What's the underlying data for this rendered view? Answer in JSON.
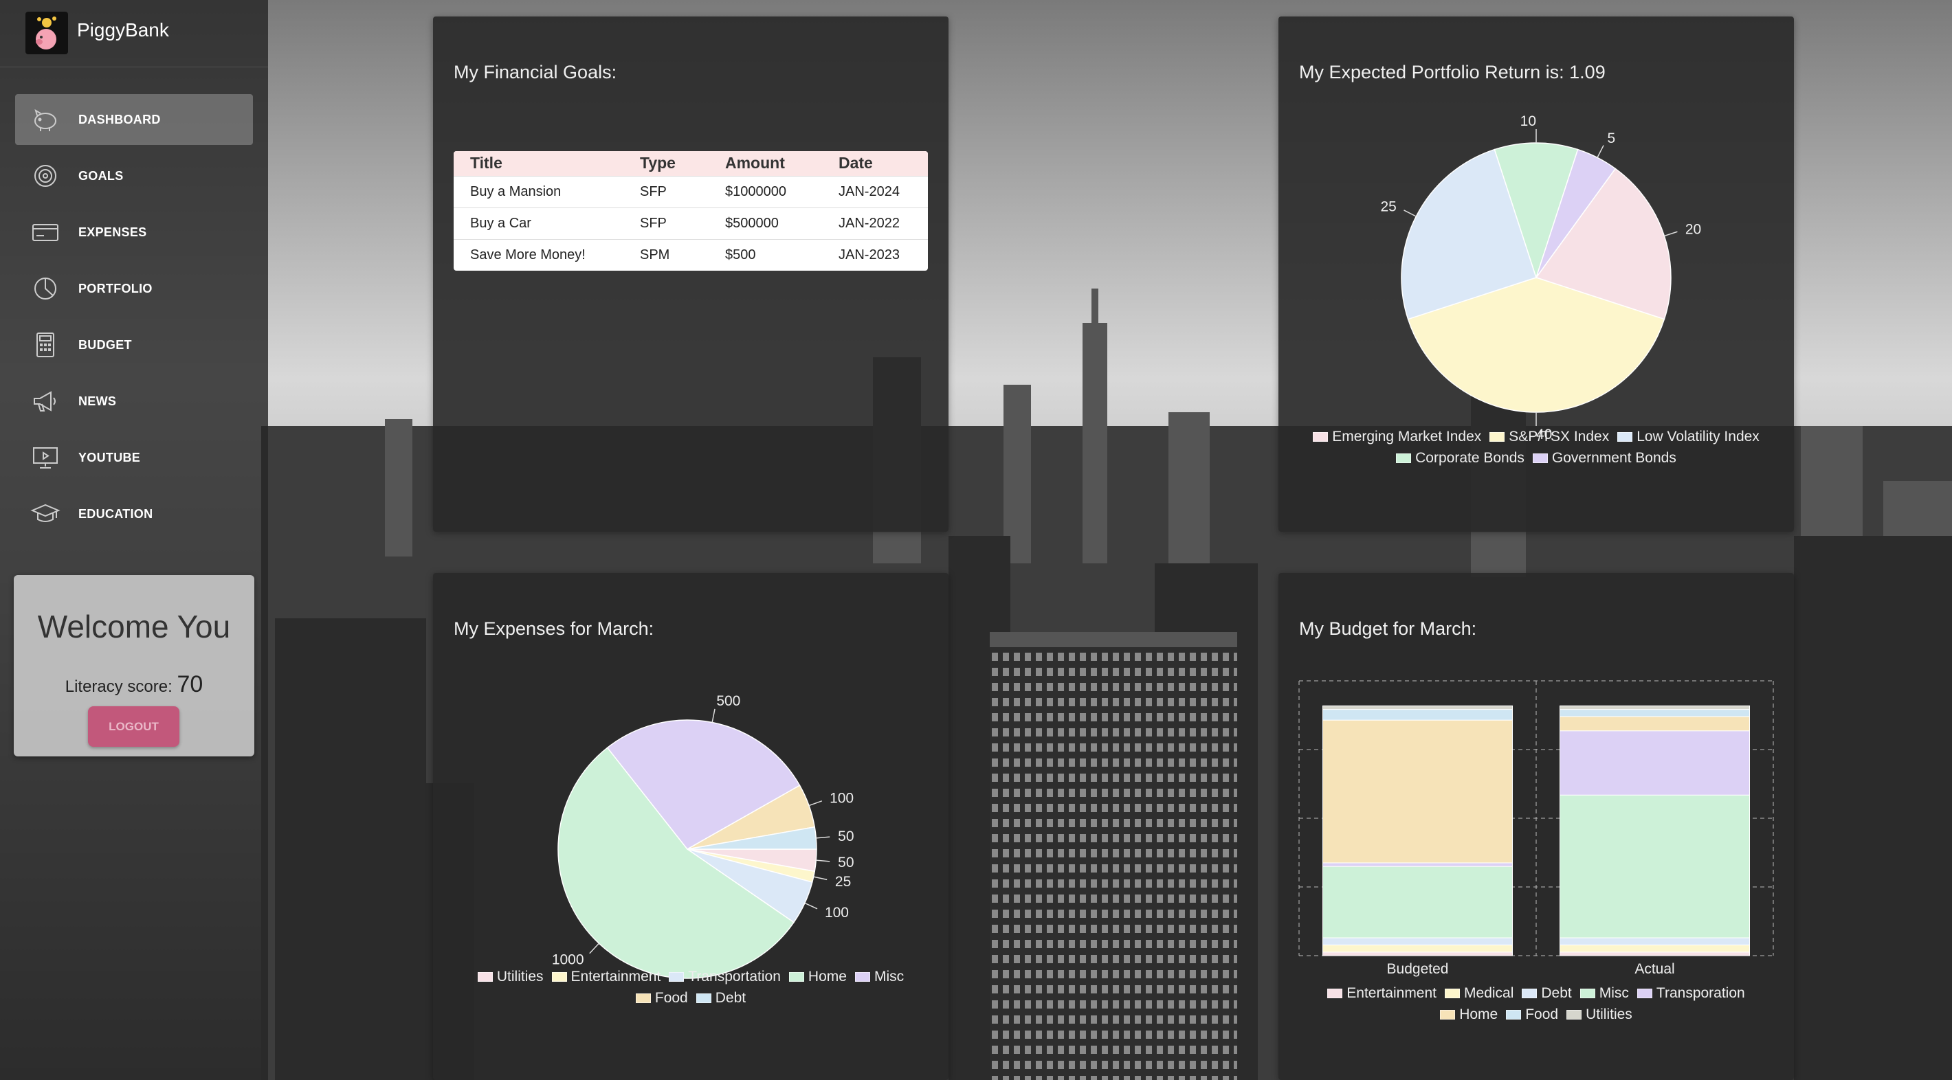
{
  "app": {
    "name": "PiggyBank"
  },
  "sidebar": {
    "items": [
      {
        "label": "DASHBOARD",
        "icon": "piggy-bank-icon",
        "active": true
      },
      {
        "label": "GOALS",
        "icon": "target-icon",
        "active": false
      },
      {
        "label": "EXPENSES",
        "icon": "credit-card-icon",
        "active": false
      },
      {
        "label": "PORTFOLIO",
        "icon": "pie-chart-icon",
        "active": false
      },
      {
        "label": "BUDGET",
        "icon": "calculator-icon",
        "active": false
      },
      {
        "label": "NEWS",
        "icon": "megaphone-icon",
        "active": false
      },
      {
        "label": "YOUTUBE",
        "icon": "monitor-icon",
        "active": false
      },
      {
        "label": "EDUCATION",
        "icon": "graduation-cap-icon",
        "active": false
      }
    ],
    "welcome": {
      "heading": "Welcome You",
      "literacy_label": "Literacy score:",
      "literacy_score": "70",
      "logout_label": "LOGOUT"
    }
  },
  "goals_card": {
    "title": "My Financial Goals:",
    "columns": [
      "Title",
      "Type",
      "Amount",
      "Date"
    ],
    "rows": [
      [
        "Buy a Mansion",
        "SFP",
        "$1000000",
        "JAN-2024"
      ],
      [
        "Buy a Car",
        "SFP",
        "$500000",
        "JAN-2022"
      ],
      [
        "Save More Money!",
        "SPM",
        "$500",
        "JAN-2023"
      ]
    ]
  },
  "portfolio_card": {
    "title": "My Expected Portfolio Return is: 1.09"
  },
  "expenses_card": {
    "title": "My Expenses for March:"
  },
  "budget_card": {
    "title": "My Budget for March:"
  },
  "colors": {
    "pink": "#f7e1e6",
    "yellow": "#fdf6cc",
    "blue": "#dbe8f7",
    "green": "#cdf1d8",
    "purple": "#dcd1f5",
    "tan": "#f6e3b8",
    "lightblue": "#cfe6f3",
    "grey": "#d6d6cd"
  },
  "chart_data": [
    {
      "id": "portfolio",
      "type": "pie",
      "labels": [
        "Emerging Market Index",
        "S&P/TSX Index",
        "Low Volatility Index",
        "Corporate Bonds",
        "Government Bonds"
      ],
      "values": [
        20,
        40,
        25,
        10,
        5
      ],
      "colors": [
        "#f7e1e6",
        "#fdf6cc",
        "#dbe8f7",
        "#cdf1d8",
        "#dcd1f5"
      ],
      "legend": "bottom"
    },
    {
      "id": "expenses",
      "type": "pie",
      "labels": [
        "Utilities",
        "Entertainment",
        "Transportation",
        "Home",
        "Misc",
        "Food",
        "Debt"
      ],
      "values": [
        50,
        25,
        100,
        1000,
        500,
        100,
        50
      ],
      "colors": [
        "#f7e1e6",
        "#fdf6cc",
        "#dbe8f7",
        "#cdf1d8",
        "#dcd1f5",
        "#f6e3b8",
        "#cfe6f3"
      ],
      "legend": "bottom"
    },
    {
      "id": "budget",
      "type": "bar",
      "stacked": true,
      "categories": [
        "Budgeted",
        "Actual"
      ],
      "series": [
        {
          "name": "Entertainment",
          "values": [
            25,
            25
          ],
          "color": "#f7e1e6"
        },
        {
          "name": "Medical",
          "values": [
            50,
            50
          ],
          "color": "#fdf6cc"
        },
        {
          "name": "Debt",
          "values": [
            50,
            50
          ],
          "color": "#dbe8f7"
        },
        {
          "name": "Misc",
          "values": [
            500,
            1000
          ],
          "color": "#cdf1d8"
        },
        {
          "name": "Transporation",
          "values": [
            25,
            450
          ],
          "color": "#dcd1f5"
        },
        {
          "name": "Home",
          "values": [
            1000,
            100
          ],
          "color": "#f6e3b8"
        },
        {
          "name": "Food",
          "values": [
            75,
            50
          ],
          "color": "#cfe6f3"
        },
        {
          "name": "Utilities",
          "values": [
            25,
            25
          ],
          "color": "#d6d6cd"
        }
      ],
      "grid": true,
      "legend": "bottom"
    }
  ]
}
